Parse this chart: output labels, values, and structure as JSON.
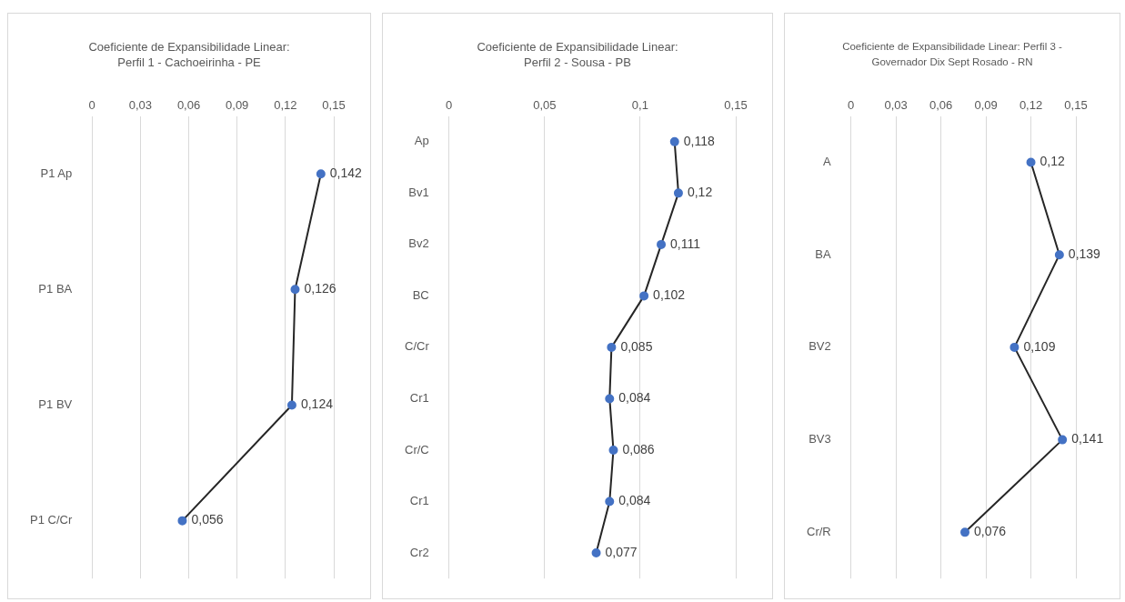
{
  "chart_data": [
    {
      "type": "line",
      "title": "Coeficiente de Expansibilidade Linear: Perfil 1 - Cachoeirinha - PE",
      "orientation": "horizontal",
      "categories": [
        "P1 Ap",
        "P1 BA",
        "P1 BV",
        "P1 C/Cr"
      ],
      "series": [
        {
          "color": "#262626",
          "colors": [
            "#4472c4",
            "#4472c4",
            "#4472c4",
            "#4472c4"
          ],
          "values": [
            0.142,
            0.126,
            0.124,
            0.056
          ],
          "value_labels": [
            "0,142",
            "0,126",
            "0,124",
            "0,056"
          ]
        }
      ],
      "xlim": [
        0,
        0.15
      ],
      "xticks": [
        {
          "value": 0,
          "label": "0"
        },
        {
          "value": 0.03,
          "label": "0,03"
        },
        {
          "value": 0.06,
          "label": "0,06"
        },
        {
          "value": 0.09,
          "label": "0,09"
        },
        {
          "value": 0.12,
          "label": "0,12"
        },
        {
          "value": 0.15,
          "label": "0,15"
        }
      ],
      "grid": "x",
      "marker": "circle",
      "legend": false
    },
    {
      "type": "line",
      "title": "Coeficiente de Expansibilidade Linear: Perfil 2 - Sousa - PB",
      "orientation": "horizontal",
      "categories": [
        "Ap",
        "Bv1",
        "Bv2",
        "BC",
        "C/Cr",
        "Cr1",
        "Cr/C",
        "Cr1",
        "Cr2"
      ],
      "series": [
        {
          "color": "#262626",
          "colors": [
            "#4472c4",
            "#4472c4",
            "#4472c4",
            "#4472c4",
            "#4472c4",
            "#4472c4",
            "#4472c4",
            "#4472c4",
            "#4472c4"
          ],
          "values": [
            0.118,
            0.12,
            0.111,
            0.102,
            0.085,
            0.084,
            0.086,
            0.084,
            0.077
          ],
          "value_labels": [
            "0,118",
            "0,12",
            "0,111",
            "0,102",
            "0,085",
            "0,084",
            "0,086",
            "0,084",
            "0,077"
          ]
        }
      ],
      "xlim": [
        0,
        0.15
      ],
      "xticks": [
        {
          "value": 0,
          "label": "0"
        },
        {
          "value": 0.05,
          "label": "0,05"
        },
        {
          "value": 0.1,
          "label": "0,1"
        },
        {
          "value": 0.15,
          "label": "0,15"
        }
      ],
      "grid": "x",
      "marker": "circle",
      "legend": false
    },
    {
      "type": "line",
      "title": "Coeficiente de Expansibilidade Linear: Perfil 3 - Governador Dix Sept Rosado - RN",
      "orientation": "horizontal",
      "categories": [
        "A",
        "BA",
        "BV2",
        "BV3",
        "Cr/R"
      ],
      "series": [
        {
          "color": "#262626",
          "colors": [
            "#4472c4",
            "#4472c4",
            "#4472c4",
            "#4472c4",
            "#4472c4"
          ],
          "values": [
            0.12,
            0.139,
            0.109,
            0.141,
            0.076
          ],
          "value_labels": [
            "0,12",
            "0,139",
            "0,109",
            "0,141",
            "0,076"
          ]
        }
      ],
      "xlim": [
        0,
        0.15
      ],
      "xticks": [
        {
          "value": 0,
          "label": "0"
        },
        {
          "value": 0.03,
          "label": "0,03"
        },
        {
          "value": 0.06,
          "label": "0,06"
        },
        {
          "value": 0.09,
          "label": "0,09"
        },
        {
          "value": 0.12,
          "label": "0,12"
        },
        {
          "value": 0.15,
          "label": "0,15"
        }
      ],
      "grid": "x",
      "marker": "circle",
      "legend": false
    }
  ]
}
